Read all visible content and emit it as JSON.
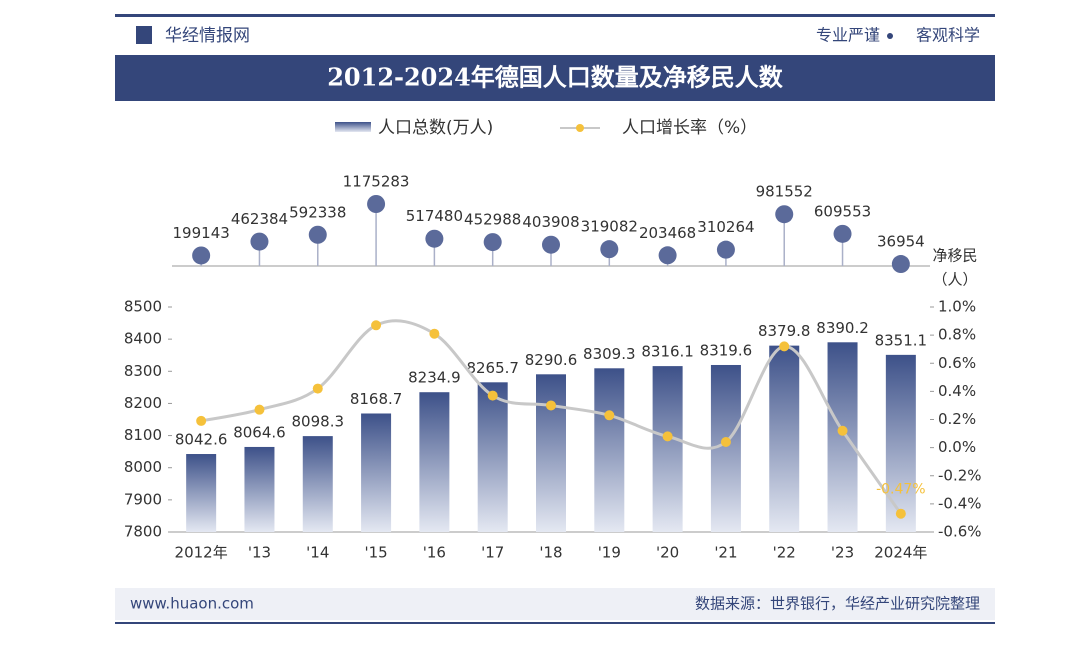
{
  "header": {
    "brand": "华经情报网",
    "slogan": [
      "专业严谨",
      "客观科学"
    ]
  },
  "title": "2012-2024年德国人口数量及净移民人数",
  "chart_data": [
    {
      "type": "lollipop",
      "axis_label": [
        "净移民",
        "（人）"
      ],
      "categories": [
        "2012年",
        "'13",
        "'14",
        "'15",
        "'16",
        "'17",
        "'18",
        "'19",
        "'20",
        "'21",
        "'22",
        "'23",
        "2024年"
      ],
      "values": [
        199143,
        462384,
        592338,
        1175283,
        517480,
        452988,
        403908,
        319082,
        203468,
        310264,
        981552,
        609553,
        36954
      ],
      "color": "#5b6a9a"
    },
    {
      "type": "bar-line",
      "categories": [
        "2012年",
        "'13",
        "'14",
        "'15",
        "'16",
        "'17",
        "'18",
        "'19",
        "'20",
        "'21",
        "'22",
        "'23",
        "2024年"
      ],
      "series": [
        {
          "name": "人口总数(万人)",
          "type": "bar",
          "color": "#3d5189",
          "values": [
            8042.6,
            8064.6,
            8098.3,
            8168.7,
            8234.9,
            8265.7,
            8290.6,
            8309.3,
            8316.1,
            8319.6,
            8379.8,
            8390.2,
            8351.1
          ]
        },
        {
          "name": "人口增长率（%）",
          "type": "line",
          "axis": "y2",
          "color": "#f5c13b",
          "values": [
            0.19,
            0.27,
            0.42,
            0.87,
            0.81,
            0.37,
            0.3,
            0.23,
            0.08,
            0.04,
            0.72,
            0.12,
            -0.47
          ],
          "value_labels": [
            null,
            null,
            null,
            null,
            null,
            null,
            null,
            null,
            null,
            null,
            null,
            null,
            "-0.47%"
          ]
        }
      ],
      "ylim": [
        7800,
        8500
      ],
      "yticks": [
        7800,
        7900,
        8000,
        8100,
        8200,
        8300,
        8400,
        8500
      ],
      "y2lim": [
        -0.6,
        1.0
      ],
      "y2ticks": [
        {
          "value": -0.6,
          "label": "-0.6%"
        },
        {
          "value": -0.4,
          "label": "-0.4%"
        },
        {
          "value": -0.2,
          "label": "-0.2%"
        },
        {
          "value": 0,
          "label": "0.0%"
        },
        {
          "value": 0.2,
          "label": "0.2%"
        },
        {
          "value": 0.4,
          "label": "0.4%"
        },
        {
          "value": 0.6,
          "label": "0.6%"
        },
        {
          "value": 0.8,
          "label": "0.8%"
        },
        {
          "value": 1.0,
          "label": "1.0%"
        }
      ]
    }
  ],
  "footer": {
    "site": "www.huaon.com",
    "source": "数据来源：世界银行，华经产业研究院整理"
  }
}
